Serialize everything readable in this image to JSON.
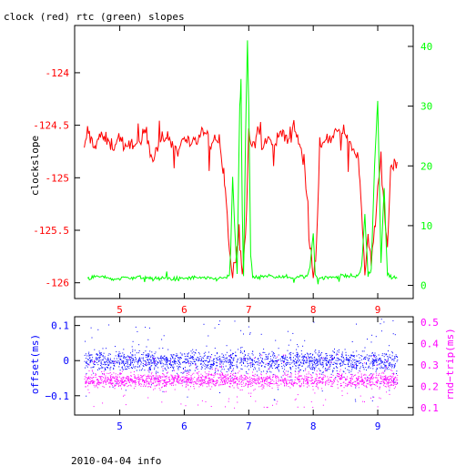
{
  "figure": {
    "title": "clock (red) rtc (green) slopes",
    "footer": "2010-04-04 info"
  },
  "colors": {
    "clock": "#ff0000",
    "rtc": "#00ff00",
    "offset": "#0000ff",
    "rndtrip": "#ff00ff",
    "axis": "#000000",
    "background": "#ffffff"
  },
  "chart_data": [
    {
      "id": "slopes",
      "type": "line",
      "title": "clock (red) rtc (green) slopes",
      "ylabel": "clockslope",
      "ylabel_right": "",
      "xlim": [
        4.3,
        9.55
      ],
      "ylim_left": [
        -126.15,
        -123.55
      ],
      "ylim_right": [
        -2.2,
        43.5
      ],
      "xticks": [
        5,
        6,
        7,
        8,
        9
      ],
      "yticks_left": [
        -126,
        -125.5,
        -125,
        -124.5,
        -124
      ],
      "yticks_right": [
        0,
        10,
        20,
        30,
        40
      ],
      "series": [
        {
          "name": "clock",
          "axis": "left",
          "x": [
            4.45,
            4.5,
            4.6,
            4.7,
            4.8,
            4.9,
            5.0,
            5.1,
            5.2,
            5.3,
            5.4,
            5.5,
            5.6,
            5.7,
            5.8,
            5.9,
            6.0,
            6.1,
            6.2,
            6.3,
            6.4,
            6.5,
            6.6,
            6.65,
            6.7,
            6.75,
            6.8,
            6.85,
            6.9,
            6.95,
            7.0,
            7.05,
            7.1,
            7.15,
            7.2,
            7.3,
            7.4,
            7.5,
            7.6,
            7.7,
            7.8,
            7.9,
            7.95,
            8.0,
            8.05,
            8.1,
            8.2,
            8.3,
            8.4,
            8.5,
            8.6,
            8.7,
            8.75,
            8.8,
            8.85,
            8.9,
            8.95,
            9.0,
            9.05,
            9.1,
            9.15,
            9.2,
            9.3
          ],
          "values": [
            -124.75,
            -124.55,
            -124.7,
            -124.6,
            -124.65,
            -124.7,
            -124.6,
            -124.75,
            -124.65,
            -124.7,
            -124.55,
            -124.8,
            -124.7,
            -124.6,
            -124.65,
            -124.75,
            -124.6,
            -124.7,
            -124.65,
            -124.55,
            -124.7,
            -124.6,
            -124.85,
            -125.2,
            -125.7,
            -125.95,
            -125.8,
            -125.5,
            -125.9,
            -125.6,
            -124.6,
            -124.7,
            -124.65,
            -124.5,
            -124.75,
            -124.6,
            -124.7,
            -124.55,
            -124.65,
            -124.5,
            -124.7,
            -125.1,
            -125.6,
            -125.9,
            -125.7,
            -124.7,
            -124.6,
            -124.65,
            -124.55,
            -124.6,
            -124.7,
            -124.8,
            -125.3,
            -125.9,
            -125.6,
            -125.8,
            -125.5,
            -125.1,
            -124.8,
            -125.3,
            -125.7,
            -124.9,
            -124.85
          ]
        },
        {
          "name": "rtc",
          "axis": "right",
          "x": [
            4.5,
            4.7,
            4.9,
            5.1,
            5.3,
            5.5,
            5.7,
            5.9,
            6.1,
            6.3,
            6.5,
            6.7,
            6.72,
            6.75,
            6.78,
            6.82,
            6.86,
            6.88,
            6.9,
            6.92,
            6.95,
            6.98,
            7.0,
            7.03,
            7.06,
            7.1,
            7.3,
            7.5,
            7.7,
            7.9,
            7.95,
            8.0,
            8.03,
            8.06,
            8.1,
            8.3,
            8.5,
            8.7,
            8.75,
            8.8,
            8.85,
            8.9,
            8.95,
            9.0,
            9.05,
            9.1,
            9.15,
            9.2,
            9.3
          ],
          "values": [
            1.2,
            1.5,
            1.0,
            1.3,
            1.4,
            1.1,
            1.2,
            1.0,
            1.3,
            1.2,
            1.1,
            1.5,
            6.0,
            18.0,
            10.0,
            2.0,
            30.0,
            33.0,
            12.0,
            1.5,
            25.0,
            41.0,
            30.0,
            5.0,
            1.5,
            1.2,
            1.6,
            1.4,
            1.3,
            1.5,
            3.0,
            9.0,
            2.0,
            1.3,
            1.2,
            1.4,
            1.6,
            1.5,
            3.0,
            12.0,
            1.8,
            2.5,
            20.0,
            31.0,
            4.0,
            16.0,
            1.8,
            1.4,
            1.2
          ]
        }
      ]
    },
    {
      "id": "offset",
      "type": "scatter",
      "ylabel": "offset(ms)",
      "ylabel_right": "rnd−trip(ms)",
      "xlim": [
        4.3,
        9.55
      ],
      "ylim_left": [
        -0.155,
        0.125
      ],
      "ylim_right": [
        0.065,
        0.525
      ],
      "xticks": [
        5,
        6,
        7,
        8,
        9
      ],
      "yticks_left": [
        -0.1,
        0,
        0.1
      ],
      "yticks_left_labels": [
        "−0.1",
        "0",
        "0.1"
      ],
      "yticks_right": [
        0.1,
        0.2,
        0.3,
        0.4,
        0.5
      ],
      "series": [
        {
          "name": "offset",
          "axis": "left",
          "x_range": [
            4.45,
            9.3
          ],
          "center": 0.0,
          "spread": 0.05,
          "outlier_min": -0.12,
          "outlier_max": 0.12
        },
        {
          "name": "rnd-trip",
          "axis": "right",
          "x_range": [
            4.45,
            9.3
          ],
          "center": 0.23,
          "spread": 0.06,
          "outlier_min": 0.1,
          "outlier_max": 0.35
        }
      ]
    }
  ]
}
